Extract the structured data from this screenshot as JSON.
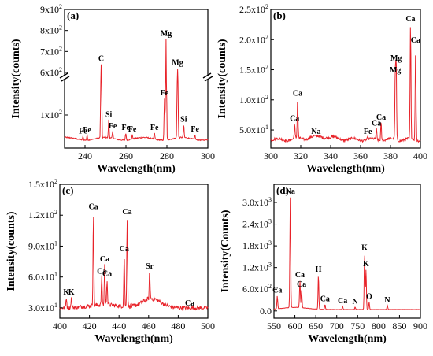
{
  "chart_data": [
    {
      "type": "line",
      "panel_label": "(a)",
      "xlabel": "Wavelength(nm)",
      "ylabel": "Intensity(counts)",
      "xlim": [
        230,
        300
      ],
      "ylim": [
        0,
        900
      ],
      "axis_break": "between 1x10^2 and 6x10^2",
      "color": "#e8232a",
      "x_ticks": [
        "240",
        "260",
        "280",
        "300"
      ],
      "y_ticks": [
        "1x10",
        "6x10",
        "7x10",
        "8x10",
        "9x10"
      ],
      "peaks": [
        {
          "label": "Fe",
          "x": 239,
          "y": 35
        },
        {
          "label": "Fe",
          "x": 241,
          "y": 38
        },
        {
          "label": "C",
          "x": 247.9,
          "y": 640
        },
        {
          "label": "Si",
          "x": 251.6,
          "y": 85
        },
        {
          "label": "Fe",
          "x": 253.5,
          "y": 50
        },
        {
          "label": "Fe",
          "x": 259.9,
          "y": 45
        },
        {
          "label": "Fe",
          "x": 263.1,
          "y": 40
        },
        {
          "label": "Fe",
          "x": 273.9,
          "y": 45
        },
        {
          "label": "Fe",
          "x": 278.8,
          "y": 150
        },
        {
          "label": "Mg",
          "x": 279.6,
          "y": 760
        },
        {
          "label": "Mg",
          "x": 285.2,
          "y": 620
        },
        {
          "label": "Si",
          "x": 288.2,
          "y": 70
        },
        {
          "label": "Fe",
          "x": 293.7,
          "y": 40
        }
      ]
    },
    {
      "type": "line",
      "panel_label": "(b)",
      "xlabel": "Wavelength(nm)",
      "ylabel": "Intensity(counts)",
      "xlim": [
        300,
        400
      ],
      "ylim": [
        20,
        250
      ],
      "color": "#e8232a",
      "x_ticks": [
        "300",
        "320",
        "340",
        "360",
        "380",
        "400"
      ],
      "y_ticks": [
        "5.0x10",
        "1.0x10",
        "1.5x10",
        "2.0x10",
        "2.5x10"
      ],
      "peaks": [
        {
          "label": "Ca",
          "x": 315.9,
          "y": 60
        },
        {
          "label": "Ca",
          "x": 317.9,
          "y": 102
        },
        {
          "label": "Na",
          "x": 330.2,
          "y": 38
        },
        {
          "label": "Fe",
          "x": 364.8,
          "y": 38
        },
        {
          "label": "Ca",
          "x": 370.6,
          "y": 52
        },
        {
          "label": "Ca",
          "x": 373.7,
          "y": 62
        },
        {
          "label": "Mg",
          "x": 383.2,
          "y": 140
        },
        {
          "label": "Mg",
          "x": 383.8,
          "y": 160
        },
        {
          "label": "Ca",
          "x": 393.4,
          "y": 225
        },
        {
          "label": "Ca",
          "x": 396.8,
          "y": 190
        }
      ]
    },
    {
      "type": "line",
      "panel_label": "(c)",
      "xlabel": "Wavelength(nm)",
      "ylabel": "Intensity(counts)",
      "xlim": [
        400,
        500
      ],
      "ylim": [
        20,
        150
      ],
      "color": "#e8232a",
      "x_ticks": [
        "400",
        "420",
        "440",
        "460",
        "480",
        "500"
      ],
      "y_ticks": [
        "3.0x10",
        "6.0x10",
        "9.0x10",
        "1.2x10",
        "1.5x10"
      ],
      "peaks": [
        {
          "label": "K",
          "x": 404.4,
          "y": 40
        },
        {
          "label": "K",
          "x": 407.8,
          "y": 40
        },
        {
          "label": "Ca",
          "x": 422.7,
          "y": 123
        },
        {
          "label": "Ca",
          "x": 428.3,
          "y": 60
        },
        {
          "label": "Ca",
          "x": 430.3,
          "y": 72
        },
        {
          "label": "Ca",
          "x": 431.9,
          "y": 58
        },
        {
          "label": "Ca",
          "x": 443.5,
          "y": 82
        },
        {
          "label": "Ca",
          "x": 445.5,
          "y": 118
        },
        {
          "label": "Sr",
          "x": 460.7,
          "y": 65
        },
        {
          "label": "Ca",
          "x": 487.8,
          "y": 29
        }
      ]
    },
    {
      "type": "line",
      "panel_label": "(d)",
      "xlabel": "Wavelength(nm)",
      "ylabel": "Intensity(Counts)",
      "xlim": [
        550,
        900
      ],
      "ylim": [
        -200,
        3500
      ],
      "color": "#e8232a",
      "x_ticks": [
        "550",
        "600",
        "650",
        "700",
        "750",
        "800",
        "850",
        "900"
      ],
      "y_ticks": [
        "0.0",
        "6.0x10",
        "1.2x10",
        "1.8x10",
        "2.4x10",
        "3.0x10"
      ],
      "peaks": [
        {
          "label": "Ca",
          "x": 558,
          "y": 420
        },
        {
          "label": "Na",
          "x": 589,
          "y": 3150
        },
        {
          "label": "Ca",
          "x": 612,
          "y": 850
        },
        {
          "label": "Ca",
          "x": 616,
          "y": 580
        },
        {
          "label": "H",
          "x": 656.3,
          "y": 1000
        },
        {
          "label": "Ca",
          "x": 672,
          "y": 180
        },
        {
          "label": "Ca",
          "x": 714,
          "y": 130
        },
        {
          "label": "N",
          "x": 744,
          "y": 110
        },
        {
          "label": "K",
          "x": 766.5,
          "y": 1600
        },
        {
          "label": "K",
          "x": 769.9,
          "y": 1150
        },
        {
          "label": "O",
          "x": 777.4,
          "y": 250
        },
        {
          "label": "N",
          "x": 821,
          "y": 150
        }
      ]
    }
  ]
}
